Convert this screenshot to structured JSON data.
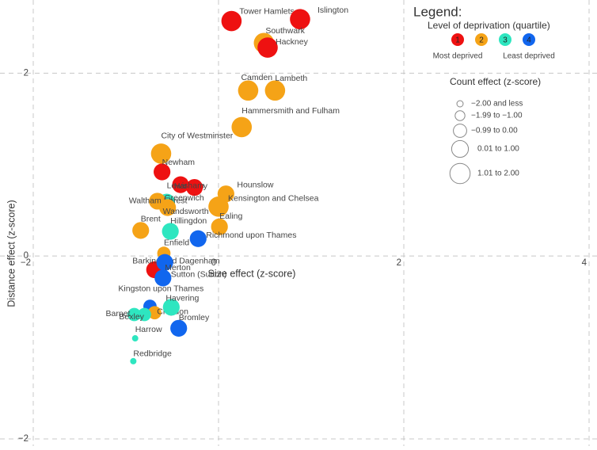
{
  "chart_data": {
    "type": "bubble",
    "xlabel": "Size effect (z-score)",
    "ylabel": "Distance effect (z-score)",
    "xlim": [
      -2,
      4
    ],
    "ylim": [
      -2,
      2.8
    ],
    "xticks": [
      {
        "value": -2,
        "label": "−2"
      },
      0,
      2,
      4
    ],
    "yticks": [
      {
        "value": -2,
        "label": "−2"
      },
      0,
      2
    ],
    "grid": true,
    "legend": {
      "title": "Legend:",
      "quartile_title": "Level of deprivation (quartile)",
      "quartiles": [
        {
          "label": "1",
          "color": "#ee1111"
        },
        {
          "label": "2",
          "color": "#f5a317"
        },
        {
          "label": "3",
          "color": "#2ee6c0"
        },
        {
          "label": "4",
          "color": "#1166ee"
        }
      ],
      "most": "Most deprived",
      "least": "Least deprived",
      "count_title": "Count effect (z-score)",
      "count_bins": [
        {
          "value": -2.5,
          "label": "−2.00 and less"
        },
        {
          "value": -1.5,
          "label": "−1.99 to −1.00"
        },
        {
          "value": -0.5,
          "label": "−0.99 to 0.00"
        },
        {
          "value": 0.5,
          "label": "0.01 to 1.00"
        },
        {
          "value": 1.5,
          "label": "1.01 to 2.00"
        }
      ]
    },
    "points": [
      {
        "name": "Tower Hamlets",
        "x": 0.14,
        "y": 2.57,
        "count": 1.5,
        "quartile": 0
      },
      {
        "name": "Islington",
        "x": 0.88,
        "y": 2.59,
        "count": 1.5,
        "quartile": 0
      },
      {
        "name": "Southwark",
        "x": 0.49,
        "y": 2.33,
        "count": 1.5,
        "quartile": 1
      },
      {
        "name": "Hackney",
        "x": 0.53,
        "y": 2.28,
        "count": 1.5,
        "quartile": 0
      },
      {
        "name": "Camden",
        "x": 0.32,
        "y": 1.81,
        "count": 1.5,
        "quartile": 1
      },
      {
        "name": "Lambeth",
        "x": 0.61,
        "y": 1.81,
        "count": 1.5,
        "quartile": 1
      },
      {
        "name": "Hammersmith and Fulham",
        "x": 0.25,
        "y": 1.41,
        "count": 1.5,
        "quartile": 1
      },
      {
        "name": "City of Westminster",
        "x": -0.62,
        "y": 1.12,
        "count": 1.5,
        "quartile": 1
      },
      {
        "name": "Newham",
        "x": -0.61,
        "y": 0.92,
        "count": 0.5,
        "quartile": 0
      },
      {
        "name": "Haringey",
        "x": -0.41,
        "y": 0.78,
        "count": 0.5,
        "quartile": 0
      },
      {
        "name": "Lewisham",
        "x": -0.26,
        "y": 0.75,
        "count": 0.5,
        "quartile": 0
      },
      {
        "name": "Hounslow",
        "x": 0.08,
        "y": 0.68,
        "count": 0.5,
        "quartile": 1
      },
      {
        "name": "Kensington and Chelsea",
        "x": 0.0,
        "y": 0.54,
        "count": 1.5,
        "quartile": 1
      },
      {
        "name": "Greenwich",
        "x": -0.56,
        "y": 0.59,
        "count": 0.5,
        "quartile": 2
      },
      {
        "name": "Waltham Forest",
        "x": -0.66,
        "y": 0.6,
        "count": 0.5,
        "quartile": 1
      },
      {
        "name": "Wandsworth",
        "x": -0.55,
        "y": 0.53,
        "count": 0.5,
        "quartile": 1
      },
      {
        "name": "Brent",
        "x": -0.84,
        "y": 0.28,
        "count": 0.5,
        "quartile": 1
      },
      {
        "name": "Hillingdon",
        "x": -0.52,
        "y": 0.27,
        "count": 0.5,
        "quartile": 2
      },
      {
        "name": "Ealing",
        "x": 0.01,
        "y": 0.32,
        "count": 0.5,
        "quartile": 1
      },
      {
        "name": "Richmond upon Thames",
        "x": -0.22,
        "y": 0.19,
        "count": 0.5,
        "quartile": 3
      },
      {
        "name": "Enfield",
        "x": -0.59,
        "y": 0.03,
        "count": -0.5,
        "quartile": 1
      },
      {
        "name": "Barking and Dagenham",
        "x": -0.69,
        "y": -0.15,
        "count": 0.5,
        "quartile": 0
      },
      {
        "name": "Merton",
        "x": -0.58,
        "y": -0.07,
        "count": 0.5,
        "quartile": 3
      },
      {
        "name": "Sutton (Sutton)",
        "x": -0.6,
        "y": -0.24,
        "count": 0.5,
        "quartile": 3
      },
      {
        "name": "Kingston upon Thames",
        "x": -0.74,
        "y": -0.55,
        "count": -0.5,
        "quartile": 3
      },
      {
        "name": "Croydon",
        "x": -0.69,
        "y": -0.62,
        "count": -0.5,
        "quartile": 1
      },
      {
        "name": "Havering",
        "x": -0.51,
        "y": -0.56,
        "count": 0.5,
        "quartile": 2
      },
      {
        "name": "Barnet",
        "x": -0.91,
        "y": -0.64,
        "count": -0.5,
        "quartile": 2
      },
      {
        "name": "Bexley",
        "x": -0.8,
        "y": -0.64,
        "count": -0.5,
        "quartile": 2
      },
      {
        "name": "Bromley",
        "x": -0.43,
        "y": -0.79,
        "count": 0.5,
        "quartile": 3
      },
      {
        "name": "Harrow",
        "x": -0.9,
        "y": -0.9,
        "count": -2.5,
        "quartile": 2
      },
      {
        "name": "Redbridge",
        "x": -0.92,
        "y": -1.15,
        "count": -2.5,
        "quartile": 2
      }
    ]
  }
}
